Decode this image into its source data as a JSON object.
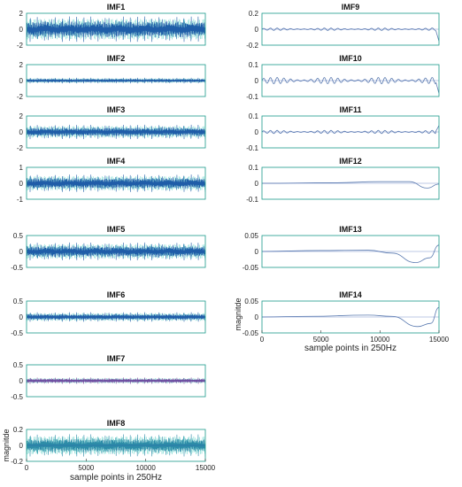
{
  "figure": {
    "left_xlabel": "sample points in 250Hz",
    "right_xlabel": "sample points in 250Hz",
    "left_ylabel": "magnitde",
    "right_ylabel": "magnitde"
  },
  "chart_data": [
    {
      "type": "line",
      "title": "IMF1",
      "ylim": [
        -2,
        2
      ],
      "yticks": [
        "2",
        "0",
        "-2"
      ],
      "xlim": [
        0,
        15000
      ],
      "grid": false,
      "series": [
        {
          "kind": "dense-oscillation",
          "amplitude": 1.6,
          "color": "#1f5fa8"
        }
      ]
    },
    {
      "type": "line",
      "title": "IMF2",
      "ylim": [
        -2,
        2
      ],
      "yticks": [
        "2",
        "0",
        "-2"
      ],
      "xlim": [
        0,
        15000
      ],
      "grid": false,
      "series": [
        {
          "kind": "dense-oscillation",
          "amplitude": 0.35,
          "color": "#1f5fa8"
        }
      ]
    },
    {
      "type": "line",
      "title": "IMF3",
      "ylim": [
        -2,
        2
      ],
      "yticks": [
        "2",
        "0",
        "-2"
      ],
      "xlim": [
        0,
        15000
      ],
      "grid": false,
      "series": [
        {
          "kind": "dense-oscillation",
          "amplitude": 0.9,
          "color": "#1f5fa8"
        }
      ]
    },
    {
      "type": "line",
      "title": "IMF4",
      "ylim": [
        -1,
        1
      ],
      "yticks": [
        "1",
        "0",
        "-1"
      ],
      "xlim": [
        0,
        15000
      ],
      "grid": false,
      "series": [
        {
          "kind": "dense-oscillation",
          "amplitude": 0.55,
          "color": "#1f5fa8"
        }
      ]
    },
    {
      "type": "line",
      "title": "IMF5",
      "ylim": [
        -0.5,
        0.5
      ],
      "yticks": [
        "0.5",
        "0",
        "-0.5"
      ],
      "xlim": [
        0,
        15000
      ],
      "grid": false,
      "series": [
        {
          "kind": "dense-oscillation",
          "amplitude": 0.28,
          "color": "#1f5fa8"
        }
      ]
    },
    {
      "type": "line",
      "title": "IMF6",
      "ylim": [
        -0.5,
        0.5
      ],
      "yticks": [
        "0.5",
        "0",
        "-0.5"
      ],
      "xlim": [
        0,
        15000
      ],
      "grid": false,
      "series": [
        {
          "kind": "dense-oscillation",
          "amplitude": 0.15,
          "color": "#1f5fa8"
        }
      ]
    },
    {
      "type": "line",
      "title": "IMF7",
      "ylim": [
        -0.5,
        0.5
      ],
      "yticks": [
        "0.5",
        "0",
        "-0.5"
      ],
      "xlim": [
        0,
        15000
      ],
      "grid": false,
      "series": [
        {
          "kind": "dense-oscillation",
          "amplitude": 0.1,
          "color": "#7a4fa0"
        }
      ]
    },
    {
      "type": "line",
      "title": "IMF8",
      "ylim": [
        -0.2,
        0.2
      ],
      "yticks": [
        "0.2",
        "0",
        "-0.2"
      ],
      "xlim": [
        0,
        15000
      ],
      "xticks": [
        "0",
        "5000",
        "10000",
        "15000"
      ],
      "grid": false,
      "series": [
        {
          "kind": "dense-oscillation",
          "amplitude": 0.14,
          "color": "#2d8ca8"
        }
      ]
    },
    {
      "type": "line",
      "title": "IMF9",
      "ylim": [
        -0.2,
        0.2
      ],
      "yticks": [
        "0.2",
        "0",
        "-0.2"
      ],
      "xlim": [
        0,
        15000
      ],
      "grid": false,
      "series": [
        {
          "kind": "wavy",
          "amplitude": 0.015,
          "end_spike": -0.15,
          "color": "#5b7bb0"
        }
      ]
    },
    {
      "type": "line",
      "title": "IMF10",
      "ylim": [
        -0.1,
        0.1
      ],
      "yticks": [
        "0.1",
        "0",
        "-0.1"
      ],
      "xlim": [
        0,
        15000
      ],
      "grid": false,
      "series": [
        {
          "kind": "wavy",
          "amplitude": 0.02,
          "end_spike": -0.08,
          "color": "#5b7bb0"
        }
      ]
    },
    {
      "type": "line",
      "title": "IMF11",
      "ylim": [
        -0.1,
        0.1
      ],
      "yticks": [
        "0.1",
        "0",
        "-0.1"
      ],
      "xlim": [
        0,
        15000
      ],
      "grid": false,
      "series": [
        {
          "kind": "wavy",
          "amplitude": 0.01,
          "end_spike": 0.04,
          "color": "#5b7bb0"
        }
      ]
    },
    {
      "type": "line",
      "title": "IMF12",
      "ylim": [
        -0.1,
        0.1
      ],
      "yticks": [
        "0.1",
        "0",
        "-0.1"
      ],
      "xlim": [
        0,
        15000
      ],
      "grid": false,
      "series": [
        {
          "kind": "trend",
          "points": [
            [
              0,
              0
            ],
            [
              6000,
              0.003
            ],
            [
              10000,
              0.01
            ],
            [
              12500,
              0.01
            ],
            [
              14000,
              -0.03
            ],
            [
              15000,
              -0.005
            ]
          ],
          "color": "#5b7bb0"
        }
      ]
    },
    {
      "type": "line",
      "title": "IMF13",
      "ylim": [
        -0.05,
        0.05
      ],
      "yticks": [
        "0.05",
        "0",
        "-0.05"
      ],
      "xlim": [
        0,
        15000
      ],
      "grid": false,
      "series": [
        {
          "kind": "trend",
          "points": [
            [
              0,
              0
            ],
            [
              5000,
              0.003
            ],
            [
              9000,
              0.004
            ],
            [
              11000,
              -0.005
            ],
            [
              13000,
              -0.035
            ],
            [
              14200,
              -0.02
            ],
            [
              15000,
              0.02
            ]
          ],
          "color": "#5b7bb0"
        }
      ]
    },
    {
      "type": "line",
      "title": "IMF14",
      "ylim": [
        -0.05,
        0.05
      ],
      "yticks": [
        "0.05",
        "0",
        "-0.05"
      ],
      "xlim": [
        0,
        15000
      ],
      "xticks": [
        "0",
        "5000",
        "10000",
        "15000"
      ],
      "grid": false,
      "series": [
        {
          "kind": "trend",
          "points": [
            [
              0,
              0
            ],
            [
              4000,
              0.002
            ],
            [
              9000,
              0.006
            ],
            [
              11000,
              0.002
            ],
            [
              13200,
              -0.03
            ],
            [
              14300,
              -0.02
            ],
            [
              15000,
              0.03
            ]
          ],
          "color": "#5b7bb0"
        }
      ]
    }
  ]
}
